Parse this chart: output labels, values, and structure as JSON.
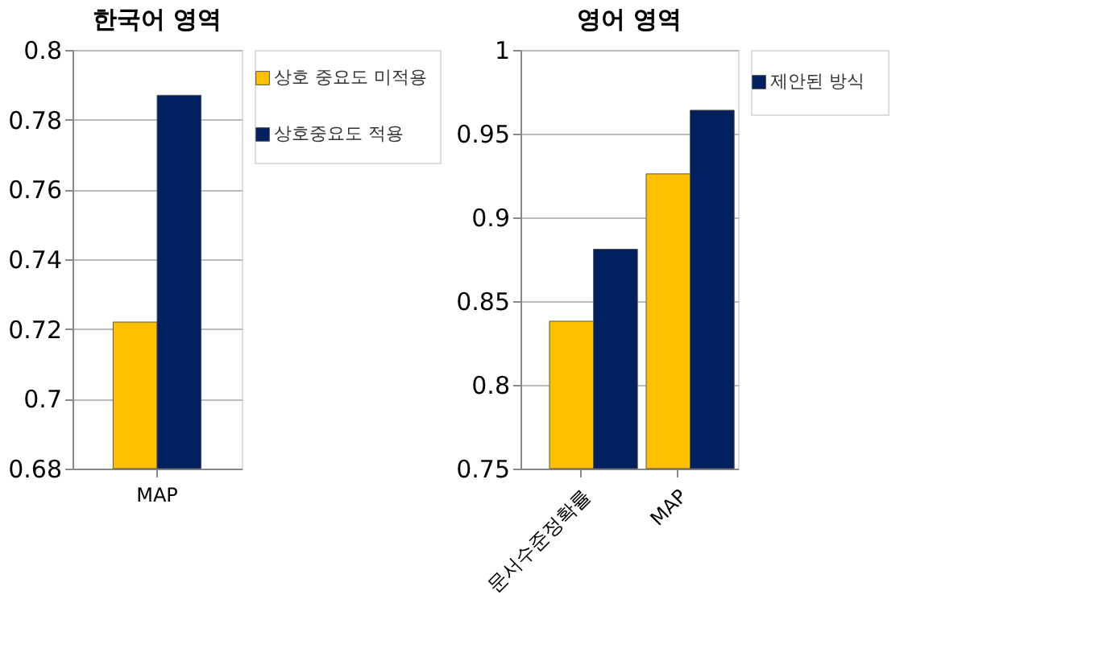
{
  "chart_data": [
    {
      "type": "bar",
      "title": "한국어 영역",
      "categories": [
        "MAP"
      ],
      "ylim": [
        0.68,
        0.8
      ],
      "yticks": [
        0.68,
        0.7,
        0.72,
        0.74,
        0.76,
        0.78,
        0.8
      ],
      "grid": "y",
      "legend": "right",
      "series": [
        {
          "name": "상호 중요도 미적용",
          "color": "#ffc000",
          "values": [
            0.722
          ]
        },
        {
          "name": "상호중요도 적용",
          "color": "#002060",
          "values": [
            0.787
          ]
        }
      ]
    },
    {
      "type": "bar",
      "title": "영어 영역",
      "categories": [
        "문서수준정확률",
        "MAP"
      ],
      "ylim": [
        0.75,
        1
      ],
      "yticks": [
        0.75,
        0.8,
        0.85,
        0.9,
        0.95,
        1
      ],
      "grid": "y",
      "legend": "right",
      "series": [
        {
          "color": "#ffc000",
          "values": [
            0.838,
            0.926
          ]
        },
        {
          "name": "제안된 방식",
          "color": "#002060",
          "values": [
            0.881,
            0.964
          ]
        }
      ]
    }
  ]
}
